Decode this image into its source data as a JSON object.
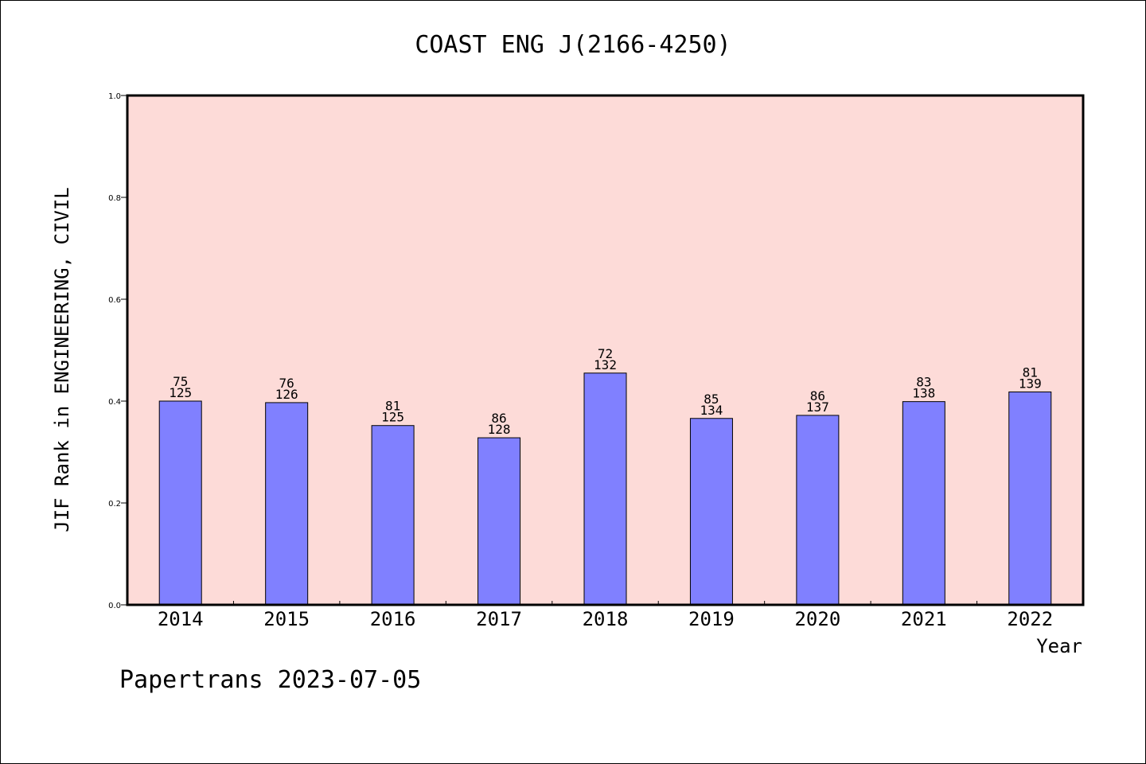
{
  "chart_data": {
    "type": "bar",
    "title": "COAST ENG J(2166-4250)",
    "ylabel": "JIF Rank in ENGINEERING, CIVIL",
    "xlabel": "Year",
    "ylim": [
      0,
      1.0
    ],
    "yticks": [
      "0.0",
      "0.2",
      "0.4",
      "0.6",
      "0.8",
      "1.0"
    ],
    "grid": false,
    "categories": [
      "2014",
      "2015",
      "2016",
      "2017",
      "2018",
      "2019",
      "2020",
      "2021",
      "2022"
    ],
    "values": [
      0.4,
      0.397,
      0.352,
      0.328,
      0.455,
      0.366,
      0.372,
      0.399,
      0.418
    ],
    "rank": [
      "75",
      "76",
      "81",
      "86",
      "72",
      "85",
      "86",
      "83",
      "81"
    ],
    "total": [
      "125",
      "126",
      "125",
      "128",
      "132",
      "134",
      "137",
      "138",
      "139"
    ],
    "colors": {
      "bar": "#8080ff",
      "plot_bg": "#fddbd8",
      "axis": "#000000"
    }
  },
  "footer": "Papertrans 2023-07-05"
}
